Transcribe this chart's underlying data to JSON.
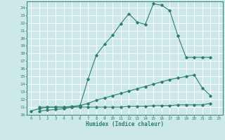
{
  "xlabel": "Humidex (Indice chaleur)",
  "bg_color": "#cce8e8",
  "grid_color": "#ffffff",
  "line_color": "#2e7d6e",
  "xlim": [
    -0.5,
    23.5
  ],
  "ylim": [
    10,
    24.8
  ],
  "xticks": [
    0,
    1,
    2,
    3,
    4,
    5,
    6,
    7,
    8,
    9,
    10,
    11,
    12,
    13,
    14,
    15,
    16,
    17,
    18,
    19,
    20,
    21,
    22,
    23
  ],
  "yticks": [
    10,
    11,
    12,
    13,
    14,
    15,
    16,
    17,
    18,
    19,
    20,
    21,
    22,
    23,
    24
  ],
  "line1_x": [
    0,
    1,
    2,
    3,
    4,
    5,
    6,
    7,
    8,
    9,
    10,
    11,
    12,
    13,
    14,
    15,
    16,
    17,
    18,
    19,
    20,
    21,
    22
  ],
  "line1_y": [
    10.5,
    10.8,
    11.0,
    11.0,
    11.0,
    11.1,
    11.2,
    14.7,
    17.8,
    19.2,
    20.4,
    21.9,
    23.2,
    22.1,
    21.8,
    24.5,
    24.3,
    23.6,
    20.3,
    17.5,
    17.5,
    17.5,
    17.5
  ],
  "line2_x": [
    1,
    2,
    3,
    4,
    5,
    6,
    7,
    8,
    9,
    10,
    11,
    12,
    13,
    14,
    15,
    16,
    17,
    18,
    19,
    20,
    21,
    22
  ],
  "line2_y": [
    10.5,
    10.6,
    10.7,
    10.8,
    11.0,
    11.2,
    11.5,
    11.9,
    12.2,
    12.5,
    12.8,
    13.1,
    13.4,
    13.7,
    14.0,
    14.3,
    14.6,
    14.8,
    15.0,
    15.2,
    13.5,
    12.5
  ],
  "line3_x": [
    1,
    2,
    3,
    4,
    5,
    6,
    7,
    8,
    9,
    10,
    11,
    12,
    13,
    14,
    15,
    16,
    17,
    18,
    19,
    20,
    21,
    22
  ],
  "line3_y": [
    11.0,
    11.0,
    11.0,
    11.0,
    11.0,
    11.0,
    11.0,
    11.0,
    11.0,
    11.0,
    11.0,
    11.1,
    11.1,
    11.1,
    11.2,
    11.2,
    11.2,
    11.3,
    11.3,
    11.3,
    11.3,
    11.5
  ]
}
